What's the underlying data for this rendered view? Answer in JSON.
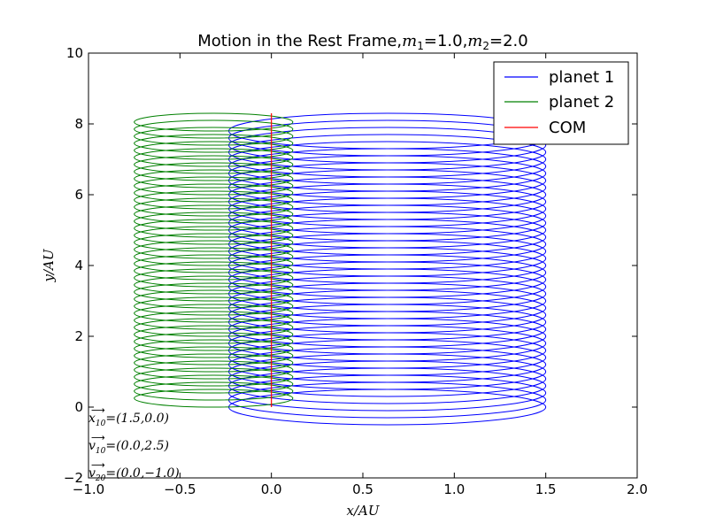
{
  "chart_data": {
    "type": "line",
    "title_prefix": "Motion in the Rest Frame,",
    "title_m1": "m",
    "title_m1_sub": "1",
    "title_m1_val": "=1.0,",
    "title_m2": "m",
    "title_m2_sub": "2",
    "title_m2_val": "=2.0",
    "xlabel": "x/AU",
    "ylabel": "y/AU",
    "xlim": [
      -1.0,
      2.0
    ],
    "ylim": [
      -2,
      10
    ],
    "xticks": [
      -1.0,
      -0.5,
      0.0,
      0.5,
      1.0,
      1.5,
      2.0
    ],
    "xtick_labels": [
      "−1.0",
      "−0.5",
      "0.0",
      "0.5",
      "1.0",
      "1.5",
      "2.0"
    ],
    "yticks": [
      -2,
      0,
      2,
      4,
      6,
      8,
      10
    ],
    "ytick_labels": [
      "−2",
      "0",
      "2",
      "4",
      "6",
      "8",
      "10"
    ],
    "grid": false,
    "legend_position": "top-right",
    "series": [
      {
        "name": "planet 1",
        "color": "#0000ff",
        "shape": "stacked-ellipses",
        "x_range": [
          -0.233,
          1.5
        ],
        "ellipse_height": 1.0,
        "y_start": 0.0,
        "y_end": 7.8,
        "loops": 40
      },
      {
        "name": "planet 2",
        "color": "#008000",
        "shape": "stacked-ellipses",
        "x_range": [
          -0.75,
          0.117
        ],
        "ellipse_height": 0.5,
        "y_start": 0.25,
        "y_end": 8.05,
        "loops": 40
      },
      {
        "name": "COM",
        "color": "#ff0000",
        "shape": "line",
        "x": [
          0.0,
          0.0
        ],
        "y": [
          0.0,
          8.3
        ]
      }
    ],
    "annotations": [
      {
        "vec": "x",
        "sub": "10",
        "value": "=(1.5,0.0)"
      },
      {
        "vec": "v",
        "sub": "10",
        "value": "=(0.0,2.5)"
      },
      {
        "vec": "v",
        "sub": "20",
        "value": "=(0.0,−1.0)"
      }
    ]
  }
}
